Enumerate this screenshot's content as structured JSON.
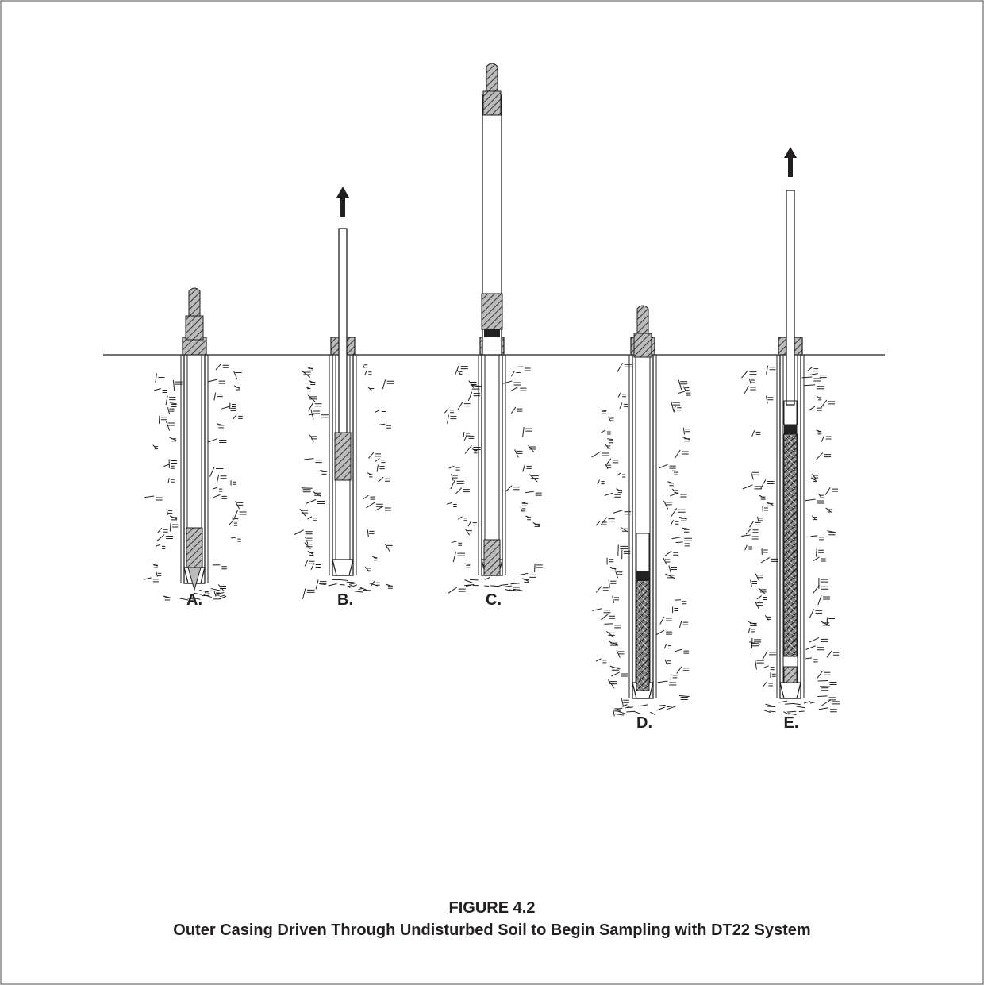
{
  "figure": {
    "number": "FIGURE 4.2",
    "caption": "Outer Casing Driven Through Undisturbed Soil to Begin Sampling with DT22 System"
  },
  "panels": [
    {
      "label": "A."
    },
    {
      "label": "B."
    },
    {
      "label": "C."
    },
    {
      "label": "D."
    },
    {
      "label": "E."
    }
  ]
}
